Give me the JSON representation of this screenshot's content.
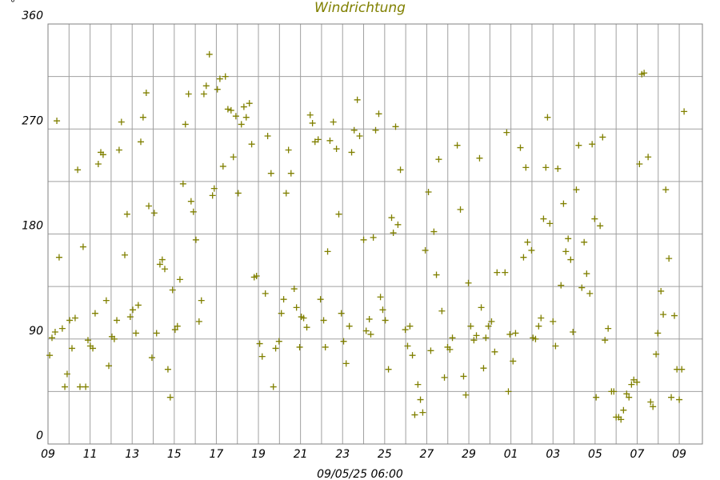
{
  "chart_data": {
    "type": "scatter",
    "title": "Windrichtung",
    "unit_label": "°",
    "xlabel": "09/05/25 06:00",
    "color": "#808000",
    "xlim": [
      0,
      31.1
    ],
    "ylim": [
      0,
      360
    ],
    "xticks": [
      {
        "value": 0,
        "label": "09"
      },
      {
        "value": 2,
        "label": "11"
      },
      {
        "value": 4,
        "label": "13"
      },
      {
        "value": 6,
        "label": "15"
      },
      {
        "value": 8,
        "label": "17"
      },
      {
        "value": 10,
        "label": "19"
      },
      {
        "value": 12,
        "label": "21"
      },
      {
        "value": 14,
        "label": "23"
      },
      {
        "value": 16,
        "label": "25"
      },
      {
        "value": 18,
        "label": "27"
      },
      {
        "value": 20,
        "label": "29"
      },
      {
        "value": 22,
        "label": "01"
      },
      {
        "value": 24,
        "label": "03"
      },
      {
        "value": 26,
        "label": "05"
      },
      {
        "value": 28,
        "label": "07"
      },
      {
        "value": 30,
        "label": "09"
      }
    ],
    "xminor": [
      1,
      3,
      5,
      7,
      9,
      11,
      13,
      15,
      17,
      19,
      21,
      23,
      25,
      27,
      29
    ],
    "yticks": [
      0,
      90,
      180,
      270,
      360
    ],
    "yminor": [
      45,
      135,
      225,
      315
    ],
    "grid": true,
    "x": [
      0.08,
      0.19,
      0.34,
      0.42,
      0.53,
      0.68,
      0.8,
      0.91,
      1.03,
      1.14,
      1.29,
      1.41,
      1.52,
      1.67,
      1.79,
      1.9,
      2.01,
      2.13,
      2.24,
      2.39,
      2.51,
      2.62,
      2.77,
      2.89,
      3.04,
      3.15,
      3.27,
      3.38,
      3.49,
      3.65,
      3.76,
      3.91,
      4.03,
      4.18,
      4.29,
      4.41,
      4.52,
      4.67,
      4.79,
      4.94,
      5.05,
      5.16,
      5.32,
      5.43,
      5.55,
      5.7,
      5.81,
      5.92,
      6.04,
      6.15,
      6.27,
      6.42,
      6.53,
      6.68,
      6.8,
      6.91,
      7.03,
      7.18,
      7.29,
      7.41,
      7.52,
      7.67,
      7.82,
      7.9,
      8.05,
      8.17,
      8.32,
      8.43,
      8.55,
      8.7,
      8.81,
      8.93,
      9.04,
      9.19,
      9.31,
      9.42,
      9.57,
      9.68,
      9.8,
      9.91,
      10.06,
      10.18,
      10.33,
      10.44,
      10.6,
      10.71,
      10.82,
      10.98,
      11.09,
      11.2,
      11.32,
      11.43,
      11.55,
      11.7,
      11.81,
      11.96,
      12.04,
      12.15,
      12.3,
      12.46,
      12.57,
      12.69,
      12.84,
      12.95,
      13.1,
      13.18,
      13.29,
      13.4,
      13.56,
      13.71,
      13.82,
      13.94,
      14.05,
      14.17,
      14.32,
      14.43,
      14.55,
      14.7,
      14.81,
      15.0,
      15.12,
      15.27,
      15.34,
      15.46,
      15.57,
      15.72,
      15.8,
      15.91,
      16.03,
      16.18,
      16.33,
      16.41,
      16.52,
      16.63,
      16.75,
      16.98,
      17.09,
      17.2,
      17.32,
      17.43,
      17.58,
      17.7,
      17.81,
      17.93,
      18.08,
      18.19,
      18.34,
      18.46,
      18.57,
      18.72,
      18.84,
      18.99,
      19.1,
      19.22,
      19.45,
      19.6,
      19.75,
      19.86,
      19.98,
      20.09,
      20.24,
      20.36,
      20.51,
      20.59,
      20.7,
      20.81,
      20.93,
      21.08,
      21.23,
      21.34,
      21.72,
      21.8,
      21.88,
      21.95,
      22.1,
      22.22,
      22.45,
      22.6,
      22.71,
      22.79,
      22.98,
      23.05,
      23.17,
      23.32,
      23.43,
      23.55,
      23.66,
      23.74,
      23.85,
      24.0,
      24.12,
      24.23,
      24.38,
      24.5,
      24.61,
      24.72,
      24.84,
      24.95,
      25.11,
      25.22,
      25.37,
      25.48,
      25.6,
      25.75,
      25.86,
      25.98,
      26.05,
      26.24,
      26.36,
      26.47,
      26.62,
      26.78,
      26.89,
      27.0,
      27.12,
      27.23,
      27.35,
      27.5,
      27.61,
      27.73,
      27.84,
      27.99,
      28.11,
      28.22,
      28.33,
      28.52,
      28.64,
      28.75,
      28.9,
      28.98,
      29.13,
      29.24,
      29.36,
      29.51,
      29.62,
      29.77,
      29.89,
      30.0,
      30.12,
      30.23
    ],
    "values": [
      76,
      91,
      96,
      277,
      160,
      99,
      49,
      60,
      106,
      82,
      108,
      235,
      49,
      169,
      49,
      89,
      84,
      82,
      112,
      240,
      250,
      248,
      123,
      67,
      92,
      90,
      106,
      252,
      276,
      162,
      197,
      109,
      115,
      95,
      119,
      259,
      280,
      301,
      204,
      74,
      198,
      95,
      154,
      158,
      150,
      64,
      40,
      132,
      98,
      101,
      141,
      223,
      274,
      300,
      208,
      199,
      175,
      105,
      123,
      300,
      307,
      334,
      213,
      219,
      304,
      313,
      238,
      315,
      287,
      286,
      246,
      281,
      215,
      274,
      289,
      280,
      292,
      257,
      143,
      144,
      86,
      75,
      129,
      264,
      232,
      49,
      82,
      88,
      112,
      124,
      215,
      252,
      232,
      133,
      117,
      83,
      109,
      108,
      100,
      282,
      275,
      259,
      261,
      124,
      106,
      83,
      165,
      260,
      276,
      253,
      197,
      112,
      88,
      69,
      101,
      250,
      269,
      295,
      264,
      175,
      97,
      107,
      94,
      177,
      269,
      283,
      126,
      115,
      106,
      64,
      194,
      181,
      272,
      188,
      235,
      98,
      84,
      101,
      76,
      25,
      51,
      38,
      27,
      166,
      216,
      80,
      182,
      145,
      244,
      114,
      57,
      83,
      81,
      91,
      256,
      201,
      58,
      42,
      138,
      101,
      89,
      93,
      245,
      117,
      65,
      91,
      101,
      105,
      79,
      147,
      147,
      267,
      45,
      94,
      71,
      95,
      254,
      160,
      237,
      173,
      166,
      91,
      90,
      101,
      108,
      193,
      237,
      280,
      189,
      105,
      84,
      236,
      136,
      206,
      165,
      176,
      158,
      96,
      218,
      256,
      134,
      173,
      146,
      129,
      257,
      193,
      40,
      187,
      263,
      89,
      99,
      45,
      45,
      23,
      23,
      21,
      29,
      43,
      40,
      51,
      55,
      53,
      240,
      317,
      318,
      246,
      36,
      32,
      77,
      95,
      131,
      111,
      218,
      159,
      40,
      110,
      64,
      38,
      64,
      285
    ]
  }
}
